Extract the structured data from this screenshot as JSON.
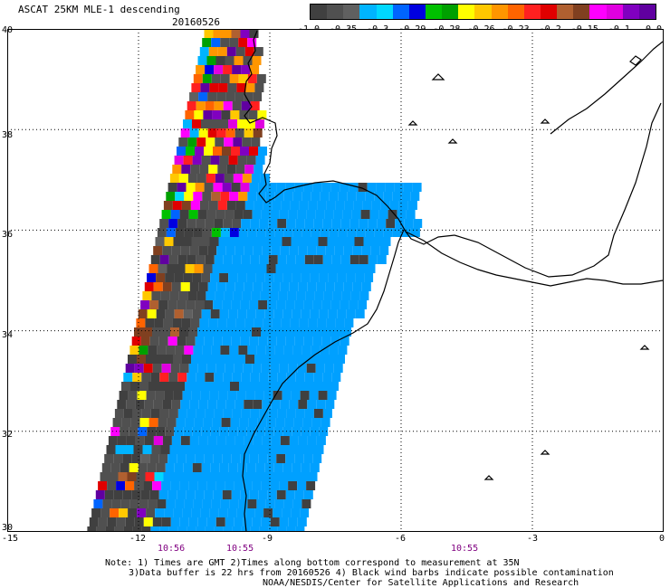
{
  "header": {
    "title": "ASCAT 25KM MLE-1 descending",
    "date": "20160526"
  },
  "colorbar": {
    "colors": [
      "#404040",
      "#505050",
      "#606060",
      "#00b4ff",
      "#00d8ff",
      "#0064ff",
      "#0000e0",
      "#00c000",
      "#00a000",
      "#ffff00",
      "#ffc800",
      "#ff9600",
      "#ff6400",
      "#ff2020",
      "#e00000",
      "#b06030",
      "#804020",
      "#ff00ff",
      "#e000e0",
      "#8000c0",
      "#6000a0"
    ],
    "labels": [
      "-1.0",
      "-0.35",
      "-0.3",
      "-0.29",
      "-0.28",
      "-0.26",
      "-0.23",
      "-0.2",
      "-0.15",
      "-0.1",
      "0.0"
    ]
  },
  "axes": {
    "lat_labels": [
      "40",
      "38",
      "36",
      "34",
      "32",
      "30"
    ],
    "lon_labels": [
      "-15",
      "-12",
      "-9",
      "-6",
      "-3",
      "0"
    ]
  },
  "times": [
    "10:56",
    "10:55",
    "10:55"
  ],
  "notes": [
    "Note: 1) Times are GMT 2)Times along bottom correspond to measurement at 35N",
    "3)Data buffer is 22 hrs from 20160526 4) Black wind barbs indicate possible contamination",
    "NOAA/NESDIS/Center for Satellite Applications and Research"
  ],
  "map": {
    "region": "Iberian Peninsula / Morocco",
    "lat_range": [
      30,
      40
    ],
    "lon_range": [
      -15,
      0
    ],
    "gridlines": true,
    "dominant_color": "#00a0ff",
    "dark_color": "#404040"
  }
}
